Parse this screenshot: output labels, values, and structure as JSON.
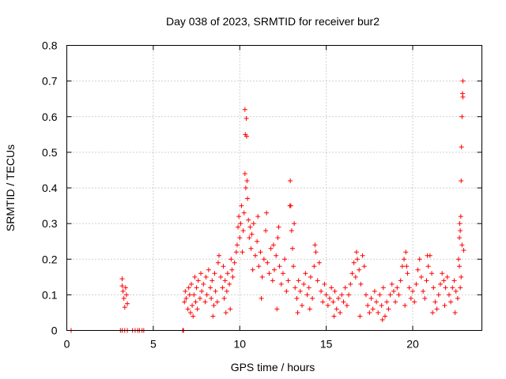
{
  "chart_data": {
    "type": "scatter",
    "title": "Day 038 of 2023, SRMTID for receiver bur2",
    "xlabel": "GPS time / hours",
    "ylabel": "SRMTID / TECUs",
    "xlim": [
      0,
      24
    ],
    "ylim": [
      0,
      0.8
    ],
    "xticks": [
      0,
      5,
      10,
      15,
      20
    ],
    "xtick_labels": [
      "0",
      "5",
      "10",
      "15",
      "20"
    ],
    "yticks": [
      0,
      0.1,
      0.2,
      0.3,
      0.4,
      0.5,
      0.6,
      0.7,
      0.8
    ],
    "ytick_labels": [
      "0",
      "0.1",
      "0.2",
      "0.3",
      "0.4",
      "0.5",
      "0.6",
      "0.7",
      "0.8"
    ],
    "grid": true,
    "marker": "+",
    "marker_color": "#ff0000",
    "series": [
      {
        "name": "SRMTID",
        "points": [
          [
            0.25,
            0.0
          ],
          [
            3.1,
            0.0
          ],
          [
            3.2,
            0.0
          ],
          [
            3.35,
            0.0
          ],
          [
            3.5,
            0.0
          ],
          [
            3.8,
            0.0
          ],
          [
            3.95,
            0.0
          ],
          [
            4.1,
            0.0
          ],
          [
            4.2,
            0.0
          ],
          [
            4.35,
            0.0
          ],
          [
            4.45,
            0.0
          ],
          [
            6.7,
            0.0
          ],
          [
            6.75,
            0.0
          ],
          [
            3.2,
            0.145
          ],
          [
            3.2,
            0.125
          ],
          [
            3.25,
            0.11
          ],
          [
            3.3,
            0.09
          ],
          [
            3.35,
            0.065
          ],
          [
            3.4,
            0.12
          ],
          [
            3.45,
            0.1
          ],
          [
            3.5,
            0.075
          ],
          [
            6.8,
            0.08
          ],
          [
            6.85,
            0.11
          ],
          [
            6.9,
            0.09
          ],
          [
            7.0,
            0.06
          ],
          [
            7.05,
            0.12
          ],
          [
            7.1,
            0.1
          ],
          [
            7.15,
            0.05
          ],
          [
            7.2,
            0.13
          ],
          [
            7.25,
            0.07
          ],
          [
            7.3,
            0.04
          ],
          [
            7.35,
            0.1
          ],
          [
            7.4,
            0.15
          ],
          [
            7.45,
            0.08
          ],
          [
            7.5,
            0.12
          ],
          [
            7.55,
            0.06
          ],
          [
            7.6,
            0.14
          ],
          [
            7.7,
            0.09
          ],
          [
            7.75,
            0.16
          ],
          [
            7.8,
            0.11
          ],
          [
            7.9,
            0.13
          ],
          [
            8.0,
            0.08
          ],
          [
            8.05,
            0.15
          ],
          [
            8.1,
            0.1
          ],
          [
            8.2,
            0.17
          ],
          [
            8.3,
            0.12
          ],
          [
            8.35,
            0.09
          ],
          [
            8.4,
            0.14
          ],
          [
            8.5,
            0.07
          ],
          [
            8.55,
            0.16
          ],
          [
            8.6,
            0.11
          ],
          [
            8.7,
            0.08
          ],
          [
            8.75,
            0.19
          ],
          [
            8.8,
            0.21
          ],
          [
            8.9,
            0.15
          ],
          [
            9.0,
            0.12
          ],
          [
            9.05,
            0.18
          ],
          [
            9.1,
            0.09
          ],
          [
            9.15,
            0.14
          ],
          [
            9.2,
            0.05
          ],
          [
            9.25,
            0.11
          ],
          [
            9.3,
            0.16
          ],
          [
            9.4,
            0.13
          ],
          [
            9.5,
            0.2
          ],
          [
            9.55,
            0.17
          ],
          [
            9.6,
            0.15
          ],
          [
            9.7,
            0.19
          ],
          [
            9.8,
            0.22
          ],
          [
            9.85,
            0.24
          ],
          [
            9.9,
            0.29
          ],
          [
            9.95,
            0.32
          ],
          [
            10.0,
            0.26
          ],
          [
            10.05,
            0.3
          ],
          [
            10.1,
            0.35
          ],
          [
            10.15,
            0.22
          ],
          [
            10.2,
            0.28
          ],
          [
            10.25,
            0.33
          ],
          [
            10.3,
            0.62
          ],
          [
            10.3,
            0.44
          ],
          [
            10.32,
            0.55
          ],
          [
            10.35,
            0.4
          ],
          [
            10.38,
            0.595
          ],
          [
            10.4,
            0.545
          ],
          [
            10.42,
            0.42
          ],
          [
            10.45,
            0.37
          ],
          [
            10.5,
            0.31
          ],
          [
            10.55,
            0.26
          ],
          [
            10.6,
            0.29
          ],
          [
            10.65,
            0.23
          ],
          [
            10.7,
            0.27
          ],
          [
            10.8,
            0.3
          ],
          [
            10.9,
            0.21
          ],
          [
            11.0,
            0.25
          ],
          [
            11.05,
            0.32
          ],
          [
            11.1,
            0.18
          ],
          [
            11.2,
            0.22
          ],
          [
            11.3,
            0.15
          ],
          [
            11.4,
            0.2
          ],
          [
            11.5,
            0.28
          ],
          [
            11.55,
            0.33
          ],
          [
            11.6,
            0.19
          ],
          [
            11.7,
            0.16
          ],
          [
            11.8,
            0.23
          ],
          [
            11.9,
            0.14
          ],
          [
            12.0,
            0.17
          ],
          [
            12.1,
            0.21
          ],
          [
            12.2,
            0.26
          ],
          [
            12.25,
            0.29
          ],
          [
            12.3,
            0.18
          ],
          [
            12.4,
            0.13
          ],
          [
            12.5,
            0.16
          ],
          [
            12.6,
            0.2
          ],
          [
            12.7,
            0.11
          ],
          [
            12.8,
            0.14
          ],
          [
            12.9,
            0.35
          ],
          [
            12.92,
            0.42
          ],
          [
            12.95,
            0.35
          ],
          [
            13.0,
            0.28
          ],
          [
            13.05,
            0.23
          ],
          [
            13.1,
            0.18
          ],
          [
            13.2,
            0.12
          ],
          [
            13.3,
            0.09
          ],
          [
            13.4,
            0.14
          ],
          [
            13.5,
            0.11
          ],
          [
            13.6,
            0.07
          ],
          [
            13.7,
            0.13
          ],
          [
            13.8,
            0.16
          ],
          [
            13.9,
            0.1
          ],
          [
            14.0,
            0.12
          ],
          [
            14.1,
            0.15
          ],
          [
            14.2,
            0.09
          ],
          [
            14.3,
            0.18
          ],
          [
            14.4,
            0.22
          ],
          [
            14.5,
            0.14
          ],
          [
            14.6,
            0.19
          ],
          [
            14.7,
            0.11
          ],
          [
            14.8,
            0.08
          ],
          [
            14.9,
            0.13
          ],
          [
            15.0,
            0.1
          ],
          [
            15.1,
            0.07
          ],
          [
            15.2,
            0.09
          ],
          [
            15.3,
            0.12
          ],
          [
            15.4,
            0.08
          ],
          [
            15.5,
            0.11
          ],
          [
            15.6,
            0.06
          ],
          [
            15.7,
            0.09
          ],
          [
            15.8,
            0.05
          ],
          [
            15.9,
            0.1
          ],
          [
            16.0,
            0.08
          ],
          [
            16.1,
            0.12
          ],
          [
            16.2,
            0.07
          ],
          [
            16.3,
            0.1
          ],
          [
            16.4,
            0.13
          ],
          [
            16.5,
            0.16
          ],
          [
            16.6,
            0.19
          ],
          [
            16.7,
            0.15
          ],
          [
            16.8,
            0.2
          ],
          [
            16.9,
            0.17
          ],
          [
            17.0,
            0.13
          ],
          [
            17.1,
            0.21
          ],
          [
            17.2,
            0.18
          ],
          [
            17.3,
            0.1
          ],
          [
            17.4,
            0.07
          ],
          [
            17.5,
            0.05
          ],
          [
            17.6,
            0.09
          ],
          [
            17.7,
            0.06
          ],
          [
            17.8,
            0.11
          ],
          [
            17.9,
            0.08
          ],
          [
            18.0,
            0.05
          ],
          [
            18.1,
            0.1
          ],
          [
            18.2,
            0.07
          ],
          [
            18.3,
            0.12
          ],
          [
            18.4,
            0.04
          ],
          [
            18.5,
            0.08
          ],
          [
            18.6,
            0.06
          ],
          [
            18.7,
            0.1
          ],
          [
            18.8,
            0.13
          ],
          [
            18.9,
            0.11
          ],
          [
            19.0,
            0.08
          ],
          [
            19.1,
            0.12
          ],
          [
            19.2,
            0.1
          ],
          [
            19.3,
            0.14
          ],
          [
            19.4,
            0.18
          ],
          [
            19.5,
            0.2
          ],
          [
            19.6,
            0.22
          ],
          [
            19.7,
            0.16
          ],
          [
            19.8,
            0.12
          ],
          [
            19.9,
            0.09
          ],
          [
            20.0,
            0.11
          ],
          [
            20.1,
            0.08
          ],
          [
            20.2,
            0.13
          ],
          [
            20.3,
            0.17
          ],
          [
            20.4,
            0.2
          ],
          [
            20.5,
            0.15
          ],
          [
            20.6,
            0.11
          ],
          [
            20.7,
            0.09
          ],
          [
            20.8,
            0.14
          ],
          [
            20.9,
            0.18
          ],
          [
            21.0,
            0.21
          ],
          [
            21.1,
            0.16
          ],
          [
            21.2,
            0.12
          ],
          [
            21.3,
            0.08
          ],
          [
            21.4,
            0.06
          ],
          [
            21.5,
            0.1
          ],
          [
            21.6,
            0.13
          ],
          [
            21.7,
            0.16
          ],
          [
            21.8,
            0.14
          ],
          [
            21.9,
            0.12
          ],
          [
            22.0,
            0.15
          ],
          [
            22.1,
            0.1
          ],
          [
            22.2,
            0.08
          ],
          [
            22.3,
            0.12
          ],
          [
            22.4,
            0.14
          ],
          [
            22.5,
            0.11
          ],
          [
            22.6,
            0.09
          ],
          [
            22.65,
            0.2
          ],
          [
            22.7,
            0.26
          ],
          [
            22.72,
            0.3
          ],
          [
            22.75,
            0.28
          ],
          [
            22.78,
            0.32
          ],
          [
            22.8,
            0.42
          ],
          [
            22.82,
            0.515
          ],
          [
            22.85,
            0.6
          ],
          [
            22.88,
            0.665
          ],
          [
            22.9,
            0.7
          ],
          [
            22.9,
            0.655
          ],
          [
            22.95,
            0.225
          ],
          [
            22.85,
            0.24
          ],
          [
            22.8,
            0.15
          ],
          [
            22.75,
            0.12
          ],
          [
            22.7,
            0.18
          ],
          [
            8.45,
            0.04
          ],
          [
            9.45,
            0.06
          ],
          [
            11.25,
            0.09
          ],
          [
            12.15,
            0.06
          ],
          [
            13.35,
            0.05
          ],
          [
            14.05,
            0.06
          ],
          [
            15.45,
            0.04
          ],
          [
            16.95,
            0.04
          ],
          [
            18.25,
            0.03
          ],
          [
            19.55,
            0.07
          ],
          [
            21.15,
            0.05
          ],
          [
            21.85,
            0.07
          ],
          [
            22.45,
            0.05
          ],
          [
            10.75,
            0.17
          ],
          [
            11.95,
            0.24
          ],
          [
            13.15,
            0.3
          ],
          [
            14.35,
            0.24
          ],
          [
            16.75,
            0.22
          ],
          [
            19.65,
            0.18
          ],
          [
            20.85,
            0.21
          ]
        ]
      }
    ]
  }
}
